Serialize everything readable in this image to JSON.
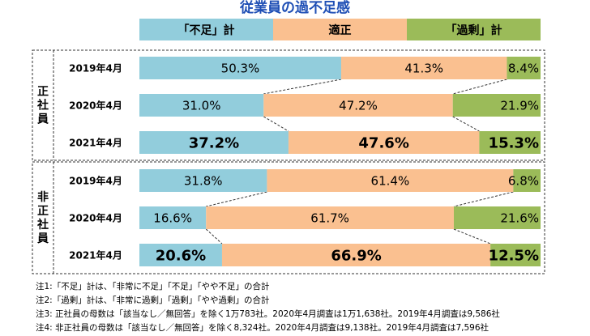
{
  "title": "従業員の過不足感",
  "chart_data": {
    "type": "bar",
    "stacked": true,
    "orientation": "horizontal",
    "legend_position": "top",
    "series": [
      {
        "name": "「不足」計",
        "color": "#92cddc"
      },
      {
        "name": "適正",
        "color": "#fac090"
      },
      {
        "name": "「過剰」計",
        "color": "#9bbb59"
      }
    ],
    "groups": [
      {
        "label": "正社員",
        "rows": [
          {
            "category": "2019年4月",
            "values": [
              50.3,
              41.3,
              8.4
            ],
            "labels": [
              "50.3%",
              "41.3%",
              "8.4%"
            ],
            "bold": false
          },
          {
            "category": "2020年4月",
            "values": [
              31.0,
              47.2,
              21.9
            ],
            "labels": [
              "31.0%",
              "47.2%",
              "21.9%"
            ],
            "bold": false
          },
          {
            "category": "2021年4月",
            "values": [
              37.2,
              47.6,
              15.3
            ],
            "labels": [
              "37.2%",
              "47.6%",
              "15.3%"
            ],
            "bold": true
          }
        ]
      },
      {
        "label": "非正社員",
        "rows": [
          {
            "category": "2019年4月",
            "values": [
              31.8,
              61.4,
              6.8
            ],
            "labels": [
              "31.8%",
              "61.4%",
              "6.8%"
            ],
            "bold": false
          },
          {
            "category": "2020年4月",
            "values": [
              16.6,
              61.7,
              21.6
            ],
            "labels": [
              "16.6%",
              "61.7%",
              "21.6%"
            ],
            "bold": false
          },
          {
            "category": "2021年4月",
            "values": [
              20.6,
              66.9,
              12.5
            ],
            "labels": [
              "20.6%",
              "66.9%",
              "12.5%"
            ],
            "bold": true
          }
        ]
      }
    ]
  },
  "notes": [
    "注1:「不足」計は、「非常に不足」「不足」「やや不足」の合計",
    "注2:「過剰」計は、「非常に過剰」「過剰」「やや過剰」の合計",
    "注3: 正社員の母数は「該当なし／無回答」を除く1万783社。2020年4月調査は1万1,638社。2019年4月調査は9,586社",
    "注4: 非正社員の母数は「該当なし／無回答」を除く8,324社。2020年4月調査は9,138社。2019年4月調査は7,596社"
  ]
}
